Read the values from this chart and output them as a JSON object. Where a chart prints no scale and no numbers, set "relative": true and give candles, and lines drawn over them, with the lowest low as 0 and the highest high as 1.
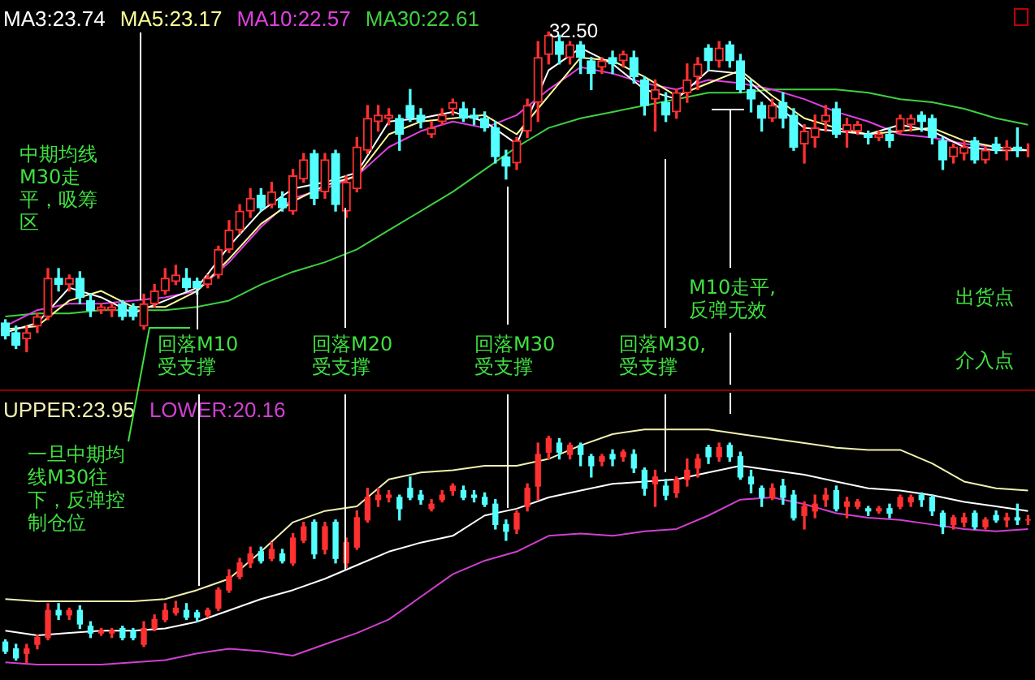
{
  "chart_data": [
    {
      "type": "candlestick",
      "relative": true,
      "legend": "top left",
      "categories": [
        null,
        null,
        null,
        null,
        null,
        null,
        null,
        null,
        null,
        null,
        null,
        null,
        null,
        null,
        null,
        null,
        null,
        null,
        null,
        null,
        null,
        null,
        null,
        null,
        null,
        null,
        null,
        null,
        null,
        null,
        null,
        null,
        null,
        null,
        null,
        null,
        null,
        null,
        null,
        null,
        null,
        null,
        null,
        null,
        null,
        null,
        null,
        null,
        null,
        null,
        null,
        null,
        null,
        null,
        null,
        null,
        null,
        null,
        null,
        null,
        null,
        null,
        null,
        null,
        null,
        null,
        null,
        null,
        null,
        null,
        null,
        null,
        null,
        null,
        null,
        null,
        null,
        null,
        null,
        null,
        null,
        null,
        null,
        null,
        null,
        null,
        null,
        null,
        null,
        null,
        null,
        null,
        null,
        null,
        null,
        null,
        null
      ],
      "ohlc": [
        [
          0.09,
          0.1,
          0.04,
          0.05
        ],
        [
          0.06,
          0.08,
          0.01,
          0.02
        ],
        [
          0.04,
          0.08,
          0,
          0.06
        ],
        [
          0.08,
          0.12,
          0.06,
          0.11
        ],
        [
          0.11,
          0.26,
          0.1,
          0.23
        ],
        [
          0.23,
          0.26,
          0.19,
          0.21
        ],
        [
          0.21,
          0.24,
          0.19,
          0.23
        ],
        [
          0.23,
          0.25,
          0.15,
          0.17
        ],
        [
          0.16,
          0.18,
          0.11,
          0.13
        ],
        [
          0.13,
          0.15,
          0.12,
          0.14
        ],
        [
          0.13,
          0.15,
          0.11,
          0.14
        ],
        [
          0.15,
          0.16,
          0.1,
          0.11
        ],
        [
          0.14,
          0.15,
          0.1,
          0.11
        ],
        [
          0.08,
          0.18,
          0.07,
          0.15
        ],
        [
          0.15,
          0.21,
          0.14,
          0.19
        ],
        [
          0.19,
          0.26,
          0.18,
          0.23
        ],
        [
          0.22,
          0.27,
          0.21,
          0.24
        ],
        [
          0.23,
          0.26,
          0.19,
          0.2
        ],
        [
          0.22,
          0.23,
          0.18,
          0.2
        ],
        [
          0.21,
          0.24,
          0.2,
          0.23
        ],
        [
          0.24,
          0.33,
          0.23,
          0.32
        ],
        [
          0.32,
          0.41,
          0.31,
          0.38
        ],
        [
          0.38,
          0.46,
          0.37,
          0.44
        ],
        [
          0.44,
          0.51,
          0.42,
          0.48
        ],
        [
          0.49,
          0.51,
          0.44,
          0.45
        ],
        [
          0.46,
          0.53,
          0.45,
          0.5
        ],
        [
          0.48,
          0.5,
          0.44,
          0.45
        ],
        [
          0.44,
          0.57,
          0.43,
          0.55
        ],
        [
          0.54,
          0.62,
          0.53,
          0.6
        ],
        [
          0.62,
          0.63,
          0.46,
          0.48
        ],
        [
          0.5,
          0.62,
          0.48,
          0.6
        ],
        [
          0.62,
          0.63,
          0.44,
          0.46
        ],
        [
          0.44,
          0.55,
          0.42,
          0.53
        ],
        [
          0.51,
          0.67,
          0.5,
          0.64
        ],
        [
          0.63,
          0.77,
          0.62,
          0.73
        ],
        [
          0.72,
          0.77,
          0.69,
          0.74
        ],
        [
          0.73,
          0.76,
          0.71,
          0.74
        ],
        [
          0.73,
          0.74,
          0.63,
          0.68
        ],
        [
          0.77,
          0.82,
          0.72,
          0.73
        ],
        [
          0.74,
          0.76,
          0.7,
          0.72
        ],
        [
          0.68,
          0.72,
          0.67,
          0.7
        ],
        [
          0.72,
          0.76,
          0.71,
          0.74
        ],
        [
          0.76,
          0.79,
          0.74,
          0.78
        ],
        [
          0.76,
          0.78,
          0.72,
          0.73
        ],
        [
          0.74,
          0.76,
          0.71,
          0.73
        ],
        [
          0.73,
          0.75,
          0.69,
          0.7
        ],
        [
          0.7,
          0.72,
          0.59,
          0.61
        ],
        [
          0.61,
          0.63,
          0.54,
          0.58
        ],
        [
          0.59,
          0.67,
          0.57,
          0.66
        ],
        [
          0.69,
          0.79,
          0.67,
          0.77
        ],
        [
          0.78,
          0.97,
          0.72,
          0.92
        ],
        [
          0.93,
          1,
          0.9,
          0.99
        ],
        [
          0.97,
          0.99,
          0.9,
          0.93
        ],
        [
          0.92,
          0.97,
          0.9,
          0.96
        ],
        [
          0.96,
          0.97,
          0.87,
          0.92
        ],
        [
          0.91,
          0.92,
          0.82,
          0.87
        ],
        [
          0.89,
          0.92,
          0.87,
          0.91
        ],
        [
          0.92,
          0.94,
          0.87,
          0.9
        ],
        [
          0.91,
          0.94,
          0.89,
          0.93
        ],
        [
          0.92,
          0.94,
          0.84,
          0.86
        ],
        [
          0.85,
          0.86,
          0.74,
          0.77
        ],
        [
          0.79,
          0.85,
          0.69,
          0.82
        ],
        [
          0.78,
          0.81,
          0.72,
          0.74
        ],
        [
          0.75,
          0.82,
          0.73,
          0.81
        ],
        [
          0.81,
          0.9,
          0.78,
          0.85
        ],
        [
          0.86,
          0.92,
          0.82,
          0.9
        ],
        [
          0.95,
          0.96,
          0.88,
          0.91
        ],
        [
          0.91,
          0.97,
          0.89,
          0.95
        ],
        [
          0.96,
          0.97,
          0.89,
          0.91
        ],
        [
          0.91,
          0.93,
          0.81,
          0.82
        ],
        [
          0.82,
          0.85,
          0.75,
          0.79
        ],
        [
          0.77,
          0.78,
          0.69,
          0.73
        ],
        [
          0.73,
          0.79,
          0.72,
          0.77
        ],
        [
          0.78,
          0.81,
          0.7,
          0.73
        ],
        [
          0.74,
          0.76,
          0.63,
          0.64
        ],
        [
          0.65,
          0.71,
          0.59,
          0.69
        ],
        [
          0.67,
          0.74,
          0.64,
          0.7
        ],
        [
          0.72,
          0.77,
          0.69,
          0.74
        ],
        [
          0.76,
          0.78,
          0.67,
          0.68
        ],
        [
          0.69,
          0.73,
          0.64,
          0.71
        ],
        [
          0.69,
          0.72,
          0.68,
          0.71
        ],
        [
          0.68,
          0.69,
          0.65,
          0.67
        ],
        [
          0.67,
          0.69,
          0.66,
          0.68
        ],
        [
          0.68,
          0.7,
          0.64,
          0.66
        ],
        [
          0.69,
          0.74,
          0.68,
          0.73
        ],
        [
          0.71,
          0.74,
          0.69,
          0.73
        ],
        [
          0.74,
          0.75,
          0.69,
          0.72
        ],
        [
          0.73,
          0.74,
          0.65,
          0.67
        ],
        [
          0.66,
          0.67,
          0.57,
          0.6
        ],
        [
          0.61,
          0.65,
          0.59,
          0.64
        ],
        [
          0.62,
          0.66,
          0.6,
          0.64
        ],
        [
          0.66,
          0.67,
          0.59,
          0.6
        ],
        [
          0.6,
          0.64,
          0.59,
          0.63
        ],
        [
          0.65,
          0.67,
          0.62,
          0.63
        ],
        [
          0.63,
          0.66,
          0.6,
          0.64
        ],
        [
          0.64,
          0.7,
          0.61,
          0.63
        ],
        [
          0.63,
          0.65,
          0.61,
          0.63
        ]
      ],
      "series": [
        {
          "type": "line",
          "name": "MA3:23.74",
          "color": "#ffffff",
          "values": [
            0.06,
            null,
            null,
            0.09,
            null,
            null,
            0.2,
            null,
            null,
            0.17,
            null,
            null,
            0.12,
            null,
            null,
            0.16,
            null,
            null,
            0.2,
            null,
            null,
            0.33,
            null,
            null,
            0.44,
            null,
            null,
            0.51,
            null,
            null,
            0.53,
            null,
            null,
            0.56,
            null,
            null,
            0.72,
            null,
            null,
            0.73,
            null,
            null,
            0.75,
            null,
            null,
            0.72,
            null,
            null,
            0.65,
            null,
            null,
            0.88,
            null,
            null,
            0.95,
            null,
            null,
            0.9,
            null,
            null,
            0.82,
            null,
            null,
            0.79,
            null,
            null,
            0.88,
            null,
            null,
            0.87,
            null,
            null,
            0.78,
            null,
            null,
            0.7,
            null,
            null,
            0.69,
            null,
            null,
            0.68,
            null,
            null,
            0.71,
            null,
            null,
            0.69,
            null,
            null,
            0.64,
            null,
            null,
            0.63,
            null,
            null,
            0.63
          ]
        },
        {
          "type": "line",
          "name": "MA5:23.17",
          "color": "#ffff99",
          "values": [
            0.07,
            null,
            null,
            0.08,
            null,
            null,
            0.16,
            null,
            null,
            0.19,
            null,
            null,
            0.14,
            null,
            null,
            0.14,
            null,
            null,
            0.19,
            null,
            null,
            0.29,
            null,
            null,
            0.4,
            null,
            null,
            0.47,
            null,
            null,
            0.52,
            null,
            null,
            0.55,
            null,
            null,
            0.68,
            null,
            null,
            0.72,
            null,
            null,
            0.73,
            null,
            null,
            0.74,
            null,
            null,
            0.68,
            null,
            null,
            0.8,
            null,
            null,
            0.92,
            null,
            null,
            0.91,
            null,
            null,
            0.86,
            null,
            null,
            0.8,
            null,
            null,
            0.84,
            null,
            null,
            0.88,
            null,
            null,
            0.8,
            null,
            null,
            0.73,
            null,
            null,
            0.7,
            null,
            null,
            0.68,
            null,
            null,
            0.69,
            null,
            null,
            0.7,
            null,
            null,
            0.66,
            null,
            null,
            0.64,
            null,
            null,
            0.63
          ]
        },
        {
          "type": "line",
          "name": "MA10:22.57",
          "color": "#e040e0",
          "values": [
            0.08,
            null,
            null,
            0.13,
            null,
            null,
            0.15,
            null,
            null,
            0.15,
            null,
            null,
            0.16,
            null,
            null,
            0.17,
            null,
            null,
            0.19,
            null,
            null,
            0.28,
            null,
            null,
            0.39,
            null,
            null,
            0.48,
            null,
            null,
            0.51,
            null,
            null,
            0.55,
            null,
            null,
            0.64,
            null,
            null,
            0.69,
            null,
            null,
            0.72,
            null,
            null,
            0.7,
            null,
            null,
            0.74,
            null,
            null,
            0.82,
            null,
            null,
            0.89,
            null,
            null,
            0.87,
            null,
            null,
            0.84,
            null,
            null,
            0.82,
            null,
            null,
            0.85,
            null,
            null,
            0.84,
            null,
            null,
            0.82,
            null,
            null,
            0.79,
            null,
            null,
            0.75,
            null,
            null,
            0.72,
            null,
            null,
            0.68,
            null,
            null,
            0.67,
            null,
            null,
            0.65,
            null,
            null,
            0.64,
            null,
            null,
            0.63
          ]
        },
        {
          "type": "line",
          "name": "MA30:22.61",
          "color": "#40d040",
          "values": [
            0.11,
            null,
            null,
            0.12,
            null,
            null,
            0.12,
            null,
            null,
            0.13,
            null,
            null,
            0.13,
            null,
            null,
            0.13,
            null,
            null,
            0.14,
            null,
            null,
            0.16,
            null,
            null,
            0.21,
            null,
            null,
            0.25,
            null,
            null,
            0.28,
            null,
            null,
            0.32,
            null,
            null,
            0.38,
            null,
            null,
            0.44,
            null,
            null,
            0.5,
            null,
            null,
            0.57,
            null,
            null,
            0.64,
            null,
            null,
            0.7,
            null,
            null,
            0.73,
            null,
            null,
            0.75,
            null,
            null,
            0.77,
            null,
            null,
            0.79,
            null,
            null,
            0.81,
            null,
            null,
            0.81,
            null,
            null,
            0.82,
            null,
            null,
            0.82,
            null,
            null,
            0.82,
            null,
            null,
            0.81,
            null,
            null,
            0.79,
            null,
            null,
            0.78,
            null,
            null,
            0.76,
            null,
            null,
            0.73,
            null,
            null,
            0.71
          ]
        }
      ],
      "annotations": [
        "中期均线M30走平，吸筹区",
        "回落M10受支撑",
        "回落M20受支撑",
        "回落M30受支撑",
        "回落M30,受支撑",
        "M10走平,反弹无效",
        "出货点",
        "介入点",
        "32.50"
      ]
    },
    {
      "type": "candlestick",
      "relative": true,
      "legend": "top left",
      "categories": [
        null,
        null,
        null,
        null,
        null,
        null,
        null,
        null,
        null,
        null,
        null,
        null,
        null,
        null,
        null,
        null,
        null,
        null,
        null,
        null,
        null,
        null,
        null,
        null,
        null,
        null,
        null,
        null,
        null,
        null,
        null,
        null,
        null,
        null,
        null,
        null,
        null,
        null,
        null,
        null,
        null,
        null,
        null,
        null,
        null,
        null,
        null,
        null,
        null,
        null,
        null,
        null,
        null,
        null,
        null,
        null,
        null,
        null,
        null,
        null,
        null,
        null,
        null,
        null,
        null,
        null,
        null,
        null,
        null,
        null,
        null,
        null,
        null,
        null,
        null,
        null,
        null,
        null,
        null,
        null,
        null,
        null,
        null,
        null,
        null,
        null,
        null,
        null,
        null,
        null,
        null,
        null,
        null,
        null,
        null,
        null,
        null
      ],
      "ohlc": [
        [
          0.09,
          0.1,
          0.04,
          0.05
        ],
        [
          0.06,
          0.08,
          0.01,
          0.02
        ],
        [
          0.04,
          0.08,
          0,
          0.06
        ],
        [
          0.08,
          0.12,
          0.06,
          0.11
        ],
        [
          0.11,
          0.26,
          0.1,
          0.23
        ],
        [
          0.23,
          0.26,
          0.19,
          0.21
        ],
        [
          0.21,
          0.24,
          0.19,
          0.23
        ],
        [
          0.23,
          0.25,
          0.15,
          0.17
        ],
        [
          0.16,
          0.18,
          0.11,
          0.13
        ],
        [
          0.13,
          0.15,
          0.12,
          0.14
        ],
        [
          0.13,
          0.15,
          0.11,
          0.14
        ],
        [
          0.15,
          0.16,
          0.1,
          0.11
        ],
        [
          0.14,
          0.15,
          0.1,
          0.11
        ],
        [
          0.08,
          0.18,
          0.07,
          0.15
        ],
        [
          0.15,
          0.21,
          0.14,
          0.19
        ],
        [
          0.19,
          0.26,
          0.18,
          0.23
        ],
        [
          0.22,
          0.27,
          0.21,
          0.24
        ],
        [
          0.23,
          0.26,
          0.19,
          0.2
        ],
        [
          0.22,
          0.23,
          0.18,
          0.2
        ],
        [
          0.21,
          0.24,
          0.2,
          0.23
        ],
        [
          0.24,
          0.33,
          0.23,
          0.32
        ],
        [
          0.32,
          0.41,
          0.31,
          0.38
        ],
        [
          0.38,
          0.46,
          0.37,
          0.44
        ],
        [
          0.44,
          0.51,
          0.42,
          0.48
        ],
        [
          0.49,
          0.51,
          0.44,
          0.45
        ],
        [
          0.46,
          0.53,
          0.45,
          0.5
        ],
        [
          0.48,
          0.5,
          0.44,
          0.45
        ],
        [
          0.44,
          0.57,
          0.43,
          0.55
        ],
        [
          0.54,
          0.62,
          0.53,
          0.6
        ],
        [
          0.62,
          0.63,
          0.46,
          0.48
        ],
        [
          0.5,
          0.62,
          0.48,
          0.6
        ],
        [
          0.62,
          0.63,
          0.44,
          0.46
        ],
        [
          0.44,
          0.55,
          0.42,
          0.53
        ],
        [
          0.51,
          0.67,
          0.5,
          0.64
        ],
        [
          0.63,
          0.77,
          0.62,
          0.73
        ],
        [
          0.72,
          0.77,
          0.69,
          0.74
        ],
        [
          0.73,
          0.76,
          0.71,
          0.74
        ],
        [
          0.73,
          0.74,
          0.63,
          0.68
        ],
        [
          0.77,
          0.82,
          0.72,
          0.73
        ],
        [
          0.74,
          0.76,
          0.7,
          0.72
        ],
        [
          0.68,
          0.72,
          0.67,
          0.7
        ],
        [
          0.72,
          0.76,
          0.71,
          0.74
        ],
        [
          0.76,
          0.79,
          0.74,
          0.78
        ],
        [
          0.76,
          0.78,
          0.72,
          0.73
        ],
        [
          0.74,
          0.76,
          0.71,
          0.73
        ],
        [
          0.73,
          0.75,
          0.69,
          0.7
        ],
        [
          0.7,
          0.72,
          0.59,
          0.61
        ],
        [
          0.61,
          0.63,
          0.54,
          0.58
        ],
        [
          0.59,
          0.67,
          0.57,
          0.66
        ],
        [
          0.69,
          0.79,
          0.67,
          0.77
        ],
        [
          0.78,
          0.97,
          0.72,
          0.92
        ],
        [
          0.93,
          1,
          0.9,
          0.99
        ],
        [
          0.97,
          0.99,
          0.9,
          0.93
        ],
        [
          0.92,
          0.97,
          0.9,
          0.96
        ],
        [
          0.96,
          0.97,
          0.87,
          0.92
        ],
        [
          0.91,
          0.92,
          0.82,
          0.87
        ],
        [
          0.89,
          0.92,
          0.87,
          0.91
        ],
        [
          0.92,
          0.94,
          0.87,
          0.9
        ],
        [
          0.91,
          0.94,
          0.89,
          0.93
        ],
        [
          0.92,
          0.94,
          0.84,
          0.86
        ],
        [
          0.85,
          0.86,
          0.74,
          0.77
        ],
        [
          0.79,
          0.85,
          0.69,
          0.82
        ],
        [
          0.78,
          0.81,
          0.72,
          0.74
        ],
        [
          0.75,
          0.82,
          0.73,
          0.81
        ],
        [
          0.81,
          0.9,
          0.78,
          0.85
        ],
        [
          0.86,
          0.92,
          0.82,
          0.9
        ],
        [
          0.95,
          0.96,
          0.88,
          0.91
        ],
        [
          0.91,
          0.97,
          0.89,
          0.95
        ],
        [
          0.96,
          0.97,
          0.89,
          0.91
        ],
        [
          0.91,
          0.93,
          0.81,
          0.82
        ],
        [
          0.82,
          0.85,
          0.75,
          0.79
        ],
        [
          0.77,
          0.78,
          0.69,
          0.73
        ],
        [
          0.73,
          0.79,
          0.72,
          0.77
        ],
        [
          0.78,
          0.81,
          0.7,
          0.73
        ],
        [
          0.74,
          0.76,
          0.63,
          0.64
        ],
        [
          0.65,
          0.71,
          0.59,
          0.69
        ],
        [
          0.67,
          0.74,
          0.64,
          0.7
        ],
        [
          0.72,
          0.77,
          0.69,
          0.74
        ],
        [
          0.76,
          0.78,
          0.67,
          0.68
        ],
        [
          0.69,
          0.73,
          0.64,
          0.71
        ],
        [
          0.69,
          0.72,
          0.68,
          0.71
        ],
        [
          0.68,
          0.69,
          0.65,
          0.67
        ],
        [
          0.67,
          0.69,
          0.66,
          0.68
        ],
        [
          0.68,
          0.7,
          0.64,
          0.66
        ],
        [
          0.69,
          0.74,
          0.68,
          0.73
        ],
        [
          0.71,
          0.74,
          0.69,
          0.73
        ],
        [
          0.74,
          0.75,
          0.69,
          0.72
        ],
        [
          0.73,
          0.74,
          0.65,
          0.67
        ],
        [
          0.66,
          0.67,
          0.57,
          0.6
        ],
        [
          0.61,
          0.65,
          0.59,
          0.64
        ],
        [
          0.62,
          0.66,
          0.6,
          0.64
        ],
        [
          0.66,
          0.67,
          0.59,
          0.6
        ],
        [
          0.6,
          0.64,
          0.59,
          0.63
        ],
        [
          0.65,
          0.67,
          0.62,
          0.63
        ],
        [
          0.63,
          0.66,
          0.6,
          0.64
        ],
        [
          0.64,
          0.7,
          0.61,
          0.63
        ],
        [
          0.63,
          0.65,
          0.61,
          0.63
        ]
      ],
      "series": [
        {
          "type": "line",
          "name": "UPPER:23.95",
          "color": "#f0f0b0",
          "values": [
            0.28,
            null,
            null,
            0.27,
            null,
            null,
            0.27,
            null,
            null,
            0.27,
            null,
            null,
            0.27,
            null,
            null,
            0.28,
            null,
            null,
            0.32,
            null,
            null,
            0.37,
            null,
            null,
            0.49,
            null,
            null,
            0.62,
            null,
            null,
            0.67,
            null,
            null,
            0.69,
            null,
            null,
            0.81,
            null,
            null,
            0.84,
            null,
            null,
            0.85,
            null,
            null,
            0.87,
            null,
            null,
            0.87,
            null,
            null,
            0.9,
            null,
            null,
            0.96,
            null,
            null,
            1.01,
            null,
            null,
            1.03,
            null,
            null,
            1.03,
            null,
            null,
            1.03,
            null,
            null,
            1.01,
            null,
            null,
            0.99,
            null,
            null,
            0.97,
            null,
            null,
            0.95,
            null,
            null,
            0.94,
            null,
            null,
            0.94,
            null,
            null,
            0.88,
            null,
            null,
            0.8,
            null,
            null,
            0.77,
            null,
            null,
            0.76
          ]
        },
        {
          "type": "line",
          "color": "#ffffff",
          "values": [
            0.14,
            null,
            null,
            0.12,
            null,
            null,
            0.13,
            null,
            null,
            0.14,
            null,
            null,
            0.14,
            null,
            null,
            0.15,
            null,
            null,
            0.18,
            null,
            null,
            0.23,
            null,
            null,
            0.28,
            null,
            null,
            0.32,
            null,
            null,
            0.37,
            null,
            null,
            0.43,
            null,
            null,
            0.49,
            null,
            null,
            0.53,
            null,
            null,
            0.56,
            null,
            null,
            0.65,
            null,
            null,
            0.68,
            null,
            null,
            0.73,
            null,
            null,
            0.76,
            null,
            null,
            0.79,
            null,
            null,
            0.8,
            null,
            null,
            0.81,
            null,
            null,
            0.84,
            null,
            null,
            0.87,
            null,
            null,
            0.85,
            null,
            null,
            0.83,
            null,
            null,
            0.8,
            null,
            null,
            0.77,
            null,
            null,
            0.76,
            null,
            null,
            0.74,
            null,
            null,
            0.71,
            null,
            null,
            0.69,
            null,
            null,
            0.67
          ]
        },
        {
          "type": "line",
          "name": "LOWER:20.16",
          "color": "#d040d0",
          "values": [
            0,
            null,
            null,
            -0.01,
            null,
            null,
            -0.01,
            null,
            null,
            -0.01,
            null,
            null,
            0,
            null,
            null,
            0.01,
            null,
            null,
            0.04,
            null,
            null,
            0.06,
            null,
            null,
            0.05,
            null,
            null,
            0.03,
            null,
            null,
            0.08,
            null,
            null,
            0.13,
            null,
            null,
            0.19,
            null,
            null,
            0.29,
            null,
            null,
            0.39,
            null,
            null,
            0.45,
            null,
            null,
            0.49,
            null,
            null,
            0.56,
            null,
            null,
            0.57,
            null,
            null,
            0.56,
            null,
            null,
            0.58,
            null,
            null,
            0.59,
            null,
            null,
            0.65,
            null,
            null,
            0.72,
            null,
            null,
            0.73,
            null,
            null,
            0.7,
            null,
            null,
            0.66,
            null,
            null,
            0.64,
            null,
            null,
            0.63,
            null,
            null,
            0.61,
            null,
            null,
            0.59,
            null,
            null,
            0.58,
            null,
            null,
            0.59
          ]
        }
      ],
      "annotations": [
        "一旦中期均线M30往下，反弹控制仓位"
      ]
    }
  ]
}
